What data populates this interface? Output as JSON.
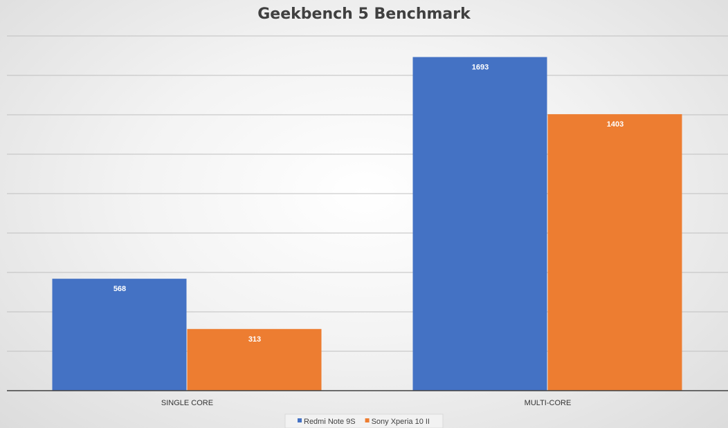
{
  "chart_data": {
    "type": "bar",
    "title": "Geekbench 5 Benchmark",
    "categories": [
      "SINGLE CORE",
      "MULTI-CORE"
    ],
    "series": [
      {
        "name": "Redmi Note 9S",
        "color": "#4472c4",
        "values": [
          568,
          1693
        ]
      },
      {
        "name": "Sony Xperia 10 II",
        "color": "#ed7d31",
        "values": [
          313,
          1403
        ]
      }
    ],
    "ylim": [
      0,
      1800
    ],
    "y_grid_step": 200,
    "grid": true,
    "legend": "bottom",
    "xlabel": "",
    "ylabel": ""
  }
}
